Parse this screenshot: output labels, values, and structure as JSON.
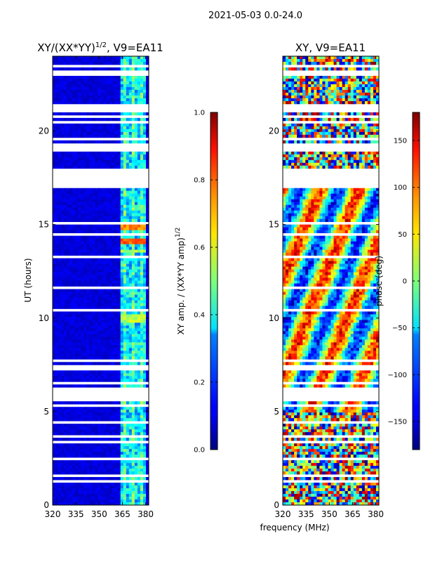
{
  "suptitle": "2021-05-03 0.0-24.0",
  "xlabel": "frequency (MHz)",
  "chart_data": [
    {
      "type": "heatmap",
      "title_main": "XY/(XX*YY)",
      "title_exp": "1/2",
      "title_tail": ", V9=EA11",
      "ylabel": "UT (hours)",
      "xlim": [
        320,
        382
      ],
      "ylim": [
        0,
        24
      ],
      "xticks": [
        320,
        335,
        350,
        365,
        380
      ],
      "yticks": [
        0,
        5,
        10,
        15,
        20
      ],
      "colormap": "jet",
      "colorbar": {
        "label_main": "XY amp. / (XX*YY amp)",
        "label_exp": "1/2",
        "range": [
          0.0,
          1.0
        ],
        "ticks": [
          "0.0",
          "0.2",
          "0.4",
          "0.6",
          "0.8",
          "1.0"
        ],
        "tick_values": [
          0.0,
          0.2,
          0.4,
          0.6,
          0.8,
          1.0
        ]
      }
    },
    {
      "type": "heatmap",
      "title_main": "XY, V9=EA11",
      "ylabel": "",
      "xlim": [
        320,
        382
      ],
      "ylim": [
        0,
        24
      ],
      "xticks": [
        320,
        335,
        350,
        365,
        380
      ],
      "yticks": [
        0,
        5,
        10,
        15,
        20
      ],
      "colormap": "jet",
      "colorbar": {
        "label_main": "phase (deg)",
        "range": [
          -180,
          180
        ],
        "ticks": [
          "150",
          "100",
          "50",
          "0",
          "−50",
          "−100",
          "−150"
        ],
        "tick_values": [
          150,
          100,
          50,
          0,
          -50,
          -100,
          -150
        ]
      }
    }
  ],
  "flagged_gaps_hours": [
    [
      0.45,
      0.5
    ],
    [
      1.25,
      1.35
    ],
    [
      1.45,
      1.6
    ],
    [
      2.2,
      2.25
    ],
    [
      2.45,
      2.5
    ],
    [
      3.25,
      3.3
    ],
    [
      3.35,
      3.4
    ],
    [
      3.55,
      3.75
    ],
    [
      3.9,
      3.95
    ],
    [
      4.15,
      4.2
    ],
    [
      4.35,
      4.45
    ],
    [
      5.25,
      5.35
    ],
    [
      5.5,
      6.3
    ],
    [
      6.5,
      6.6
    ],
    [
      7.05,
      7.1
    ],
    [
      7.2,
      7.3
    ],
    [
      7.4,
      7.45
    ],
    [
      7.7,
      7.75
    ],
    [
      8.2,
      8.3
    ],
    [
      8.5,
      8.55
    ],
    [
      9.15,
      9.2
    ],
    [
      10.4,
      10.45
    ],
    [
      11.05,
      11.1
    ],
    [
      11.25,
      11.3
    ],
    [
      11.6,
      11.65
    ],
    [
      12.25,
      12.3
    ],
    [
      12.55,
      12.6
    ],
    [
      13.05,
      13.1
    ],
    [
      13.25,
      13.3
    ],
    [
      13.65,
      13.7
    ],
    [
      14.05,
      14.1
    ],
    [
      14.45,
      14.5
    ],
    [
      15.05,
      15.1
    ],
    [
      15.25,
      15.3
    ],
    [
      15.75,
      15.8
    ],
    [
      16.05,
      16.1
    ],
    [
      16.45,
      16.5
    ],
    [
      16.65,
      16.7
    ],
    [
      16.9,
      17.0
    ],
    [
      17.0,
      17.95
    ],
    [
      18.4,
      18.5
    ],
    [
      18.85,
      19.35
    ],
    [
      19.55,
      19.6
    ],
    [
      20.1,
      20.15
    ],
    [
      20.45,
      20.5
    ],
    [
      20.75,
      20.85
    ],
    [
      21.05,
      21.1
    ],
    [
      21.2,
      21.25
    ],
    [
      21.35,
      21.4
    ],
    [
      21.6,
      21.65
    ],
    [
      22.05,
      22.1
    ],
    [
      22.45,
      22.5
    ],
    [
      23.0,
      23.2
    ],
    [
      23.45,
      23.5
    ]
  ],
  "amp_bright_band_mhz": [
    363,
    381
  ],
  "amp_hot_rows": [
    {
      "ut": [
        14.7,
        15.1
      ],
      "level": 0.8
    },
    {
      "ut": [
        13.9,
        14.3
      ],
      "level": 0.85
    },
    {
      "ut": [
        9.8,
        10.2
      ],
      "level": 0.62
    },
    {
      "ut": [
        13.5,
        13.7
      ],
      "level": 0.6
    }
  ]
}
